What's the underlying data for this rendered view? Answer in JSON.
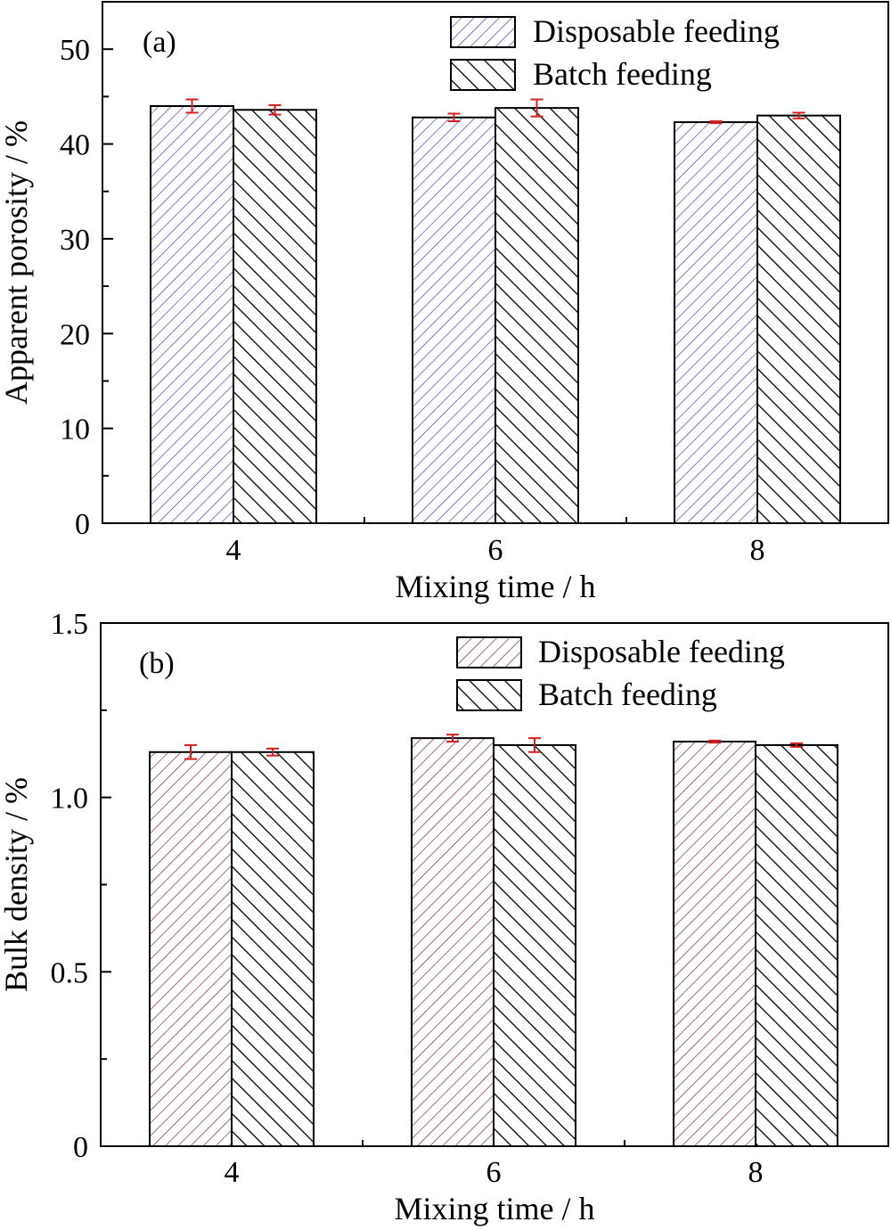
{
  "chart_data": [
    {
      "type": "bar",
      "panel_label": "(a)",
      "categories": [
        "4",
        "6",
        "8"
      ],
      "xlabel": "Mixing time / h",
      "ylabel": "Apparent porosity / %",
      "ylim": [
        0,
        55
      ],
      "yticks": [
        0,
        10,
        20,
        30,
        40,
        50
      ],
      "ytick_labels": [
        "0",
        "10",
        "20",
        "30",
        "40",
        "50"
      ],
      "legend_position": "top-right",
      "series": [
        {
          "name": "Disposable feeding",
          "values": [
            44.0,
            42.8,
            42.3
          ],
          "errors": [
            0.7,
            0.4,
            0.1
          ],
          "pattern": "fine-forward-hatch",
          "color": "#3b3ba0"
        },
        {
          "name": "Batch feeding",
          "values": [
            43.6,
            43.8,
            43.0
          ],
          "errors": [
            0.5,
            0.9,
            0.3
          ],
          "pattern": "coarse-back-hatch",
          "color": "#000000"
        }
      ],
      "error_bar_color": "#d42020",
      "grid": false
    },
    {
      "type": "bar",
      "panel_label": "(b)",
      "categories": [
        "4",
        "6",
        "8"
      ],
      "xlabel": "Mixing time / h",
      "ylabel": "Bulk density / %",
      "ylim": [
        0,
        1.5
      ],
      "yticks": [
        0,
        0.5,
        1.0,
        1.5
      ],
      "ytick_labels": [
        "0",
        "0.5",
        "1.0",
        "1.5"
      ],
      "legend_position": "top-right",
      "series": [
        {
          "name": "Disposable feeding",
          "values": [
            1.13,
            1.17,
            1.16
          ],
          "errors": [
            0.02,
            0.01,
            0.003
          ],
          "pattern": "fine-forward-hatch",
          "color": "#6a1a4a"
        },
        {
          "name": "Batch feeding",
          "values": [
            1.13,
            1.15,
            1.15
          ],
          "errors": [
            0.01,
            0.02,
            0.005
          ],
          "pattern": "coarse-back-hatch",
          "color": "#000000"
        }
      ],
      "error_bar_color": "#d42020",
      "grid": false
    }
  ]
}
